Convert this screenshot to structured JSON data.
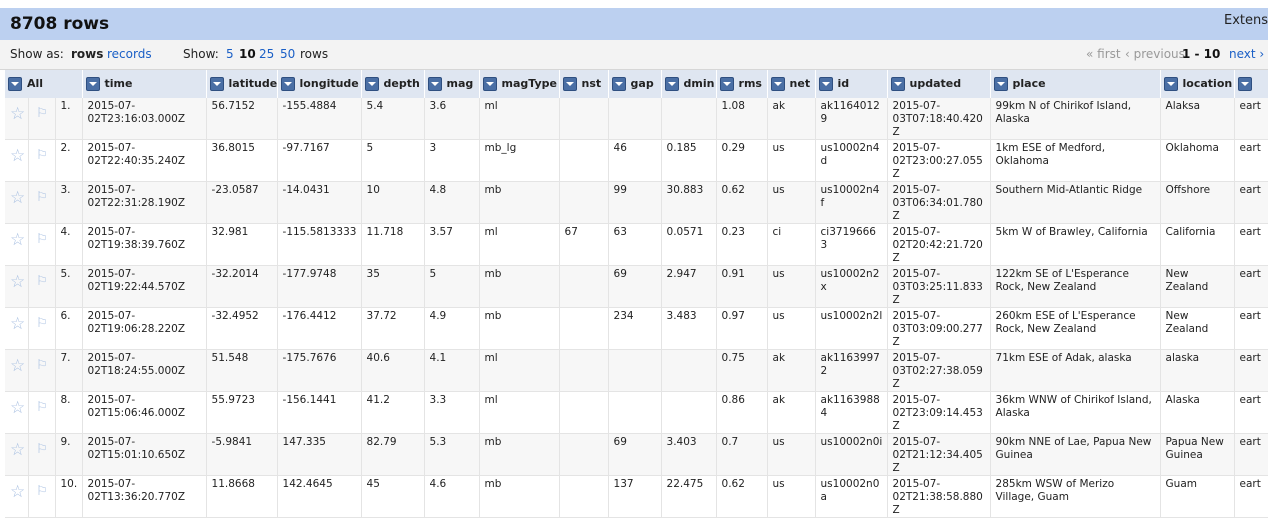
{
  "header": {
    "row_count": "8708 rows",
    "extensions_label": "Extens"
  },
  "controls": {
    "show_as_label": "Show as:",
    "show_as_rows": "rows",
    "show_as_records": "records",
    "show_label": "Show:",
    "page_sizes": [
      "5",
      "10",
      "25",
      "50"
    ],
    "page_size_selected": "10",
    "rows_suffix": "rows",
    "first": "« first",
    "previous": "‹ previous",
    "range": "1 - 10",
    "next": "next ›"
  },
  "columns": [
    "All",
    "time",
    "latitude",
    "longitude",
    "depth",
    "mag",
    "magType",
    "nst",
    "gap",
    "dmin",
    "rms",
    "net",
    "id",
    "updated",
    "place",
    "location",
    ""
  ],
  "rows": [
    {
      "n": "1.",
      "time": "2015-07-02T23:16:03.000Z",
      "latitude": "56.7152",
      "longitude": "-155.4884",
      "depth": "5.4",
      "mag": "3.6",
      "magType": "ml",
      "nst": "",
      "gap": "",
      "dmin": "",
      "rms": "1.08",
      "net": "ak",
      "id": "ak11640129",
      "updated": "2015-07-03T07:18:40.420Z",
      "place": "99km N of Chirikof Island, Alaska",
      "location": "Alaksa",
      "extra": "eart"
    },
    {
      "n": "2.",
      "time": "2015-07-02T22:40:35.240Z",
      "latitude": "36.8015",
      "longitude": "-97.7167",
      "depth": "5",
      "mag": "3",
      "magType": "mb_lg",
      "nst": "",
      "gap": "46",
      "dmin": "0.185",
      "rms": "0.29",
      "net": "us",
      "id": "us10002n4d",
      "updated": "2015-07-02T23:00:27.055Z",
      "place": "1km ESE of Medford, Oklahoma",
      "location": "Oklahoma",
      "extra": "eart"
    },
    {
      "n": "3.",
      "time": "2015-07-02T22:31:28.190Z",
      "latitude": "-23.0587",
      "longitude": "-14.0431",
      "depth": "10",
      "mag": "4.8",
      "magType": "mb",
      "nst": "",
      "gap": "99",
      "dmin": "30.883",
      "rms": "0.62",
      "net": "us",
      "id": "us10002n4f",
      "updated": "2015-07-03T06:34:01.780Z",
      "place": "Southern Mid-Atlantic Ridge",
      "location": "Offshore",
      "extra": "eart"
    },
    {
      "n": "4.",
      "time": "2015-07-02T19:38:39.760Z",
      "latitude": "32.981",
      "longitude": "-115.5813333",
      "depth": "11.718",
      "mag": "3.57",
      "magType": "ml",
      "nst": "67",
      "gap": "63",
      "dmin": "0.0571",
      "rms": "0.23",
      "net": "ci",
      "id": "ci37196663",
      "updated": "2015-07-02T20:42:21.720Z",
      "place": "5km W of Brawley, California",
      "location": "California",
      "extra": "eart"
    },
    {
      "n": "5.",
      "time": "2015-07-02T19:22:44.570Z",
      "latitude": "-32.2014",
      "longitude": "-177.9748",
      "depth": "35",
      "mag": "5",
      "magType": "mb",
      "nst": "",
      "gap": "69",
      "dmin": "2.947",
      "rms": "0.91",
      "net": "us",
      "id": "us10002n2x",
      "updated": "2015-07-03T03:25:11.833Z",
      "place": "122km SE of L'Esperance Rock, New Zealand",
      "location": "New Zealand",
      "extra": "eart"
    },
    {
      "n": "6.",
      "time": "2015-07-02T19:06:28.220Z",
      "latitude": "-32.4952",
      "longitude": "-176.4412",
      "depth": "37.72",
      "mag": "4.9",
      "magType": "mb",
      "nst": "",
      "gap": "234",
      "dmin": "3.483",
      "rms": "0.97",
      "net": "us",
      "id": "us10002n2l",
      "updated": "2015-07-03T03:09:00.277Z",
      "place": "260km ESE of L'Esperance Rock, New Zealand",
      "location": "New Zealand",
      "extra": "eart"
    },
    {
      "n": "7.",
      "time": "2015-07-02T18:24:55.000Z",
      "latitude": "51.548",
      "longitude": "-175.7676",
      "depth": "40.6",
      "mag": "4.1",
      "magType": "ml",
      "nst": "",
      "gap": "",
      "dmin": "",
      "rms": "0.75",
      "net": "ak",
      "id": "ak11639972",
      "updated": "2015-07-03T02:27:38.059Z",
      "place": "71km ESE of Adak, alaska",
      "location": "alaska",
      "extra": "eart"
    },
    {
      "n": "8.",
      "time": "2015-07-02T15:06:46.000Z",
      "latitude": "55.9723",
      "longitude": "-156.1441",
      "depth": "41.2",
      "mag": "3.3",
      "magType": "ml",
      "nst": "",
      "gap": "",
      "dmin": "",
      "rms": "0.86",
      "net": "ak",
      "id": "ak11639884",
      "updated": "2015-07-02T23:09:14.453Z",
      "place": "36km WNW of Chirikof Island, Alaska",
      "location": "Alaska",
      "extra": "eart"
    },
    {
      "n": "9.",
      "time": "2015-07-02T15:01:10.650Z",
      "latitude": "-5.9841",
      "longitude": "147.335",
      "depth": "82.79",
      "mag": "5.3",
      "magType": "mb",
      "nst": "",
      "gap": "69",
      "dmin": "3.403",
      "rms": "0.7",
      "net": "us",
      "id": "us10002n0i",
      "updated": "2015-07-02T21:12:34.405Z",
      "place": "90km NNE of Lae, Papua New Guinea",
      "location": "Papua New Guinea",
      "extra": "eart"
    },
    {
      "n": "10.",
      "time": "2015-07-02T13:36:20.770Z",
      "latitude": "11.8668",
      "longitude": "142.4645",
      "depth": "45",
      "mag": "4.6",
      "magType": "mb",
      "nst": "",
      "gap": "137",
      "dmin": "22.475",
      "rms": "0.62",
      "net": "us",
      "id": "us10002n0a",
      "updated": "2015-07-02T21:38:58.880Z",
      "place": "285km WSW of Merizo Village, Guam",
      "location": "Guam",
      "extra": "eart"
    }
  ],
  "icons": {
    "star": "star-icon",
    "flag": "flag-icon",
    "dropdown": "dropdown-arrow-icon"
  },
  "colors": {
    "header_bar": "#bcd0f0",
    "link": "#1a5fc6",
    "column_header": "#dfe6f1",
    "icon_tint": "#aac1e2"
  }
}
